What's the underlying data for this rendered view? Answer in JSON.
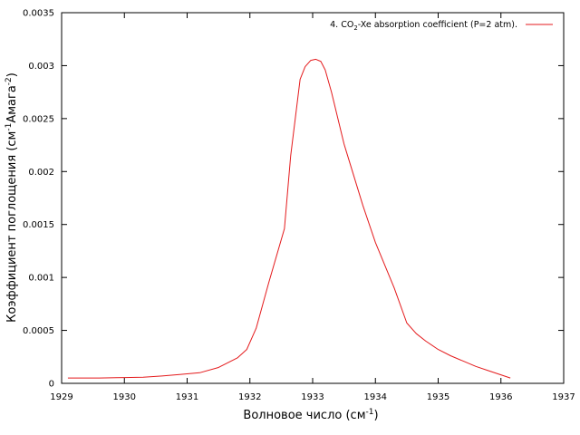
{
  "chart_data": {
    "type": "line",
    "xlabel": "Волновое число (см",
    "xlabel_sup": "-1",
    "xlabel_end": ")",
    "ylabel": "Коэффициент поглощения (см",
    "ylabel_sup1": "-1",
    "ylabel_mid": "Амага",
    "ylabel_sup2": "-2",
    "ylabel_end": ")",
    "xlim": [
      1929,
      1937
    ],
    "ylim": [
      0,
      0.0035
    ],
    "xticks": [
      1929,
      1930,
      1931,
      1932,
      1933,
      1934,
      1935,
      1936,
      1937
    ],
    "yticks": [
      0,
      0.0005,
      0.001,
      0.0015,
      0.002,
      0.0025,
      0.003,
      0.0035
    ],
    "ytick_labels": [
      "0",
      "0.0005",
      "0.001",
      "0.0015",
      "0.002",
      "0.0025",
      "0.003",
      "0.0035"
    ],
    "legend_placement": "top-right",
    "series": [
      {
        "name": "4. CO",
        "name_sub": "2",
        "name_rest": "-Xe absorption coefficient (P=2 atm).",
        "color": "#e41a1c",
        "x": [
          1929.1,
          1929.6,
          1930.0,
          1930.3,
          1930.6,
          1930.9,
          1931.2,
          1931.5,
          1931.8,
          1931.95,
          1932.1,
          1932.3,
          1932.55,
          1932.65,
          1932.8,
          1932.88,
          1932.97,
          1933.05,
          1933.13,
          1933.2,
          1933.3,
          1933.5,
          1933.8,
          1934.0,
          1934.3,
          1934.5,
          1934.65,
          1934.8,
          1935.0,
          1935.2,
          1935.4,
          1935.6,
          1935.8,
          1936.0,
          1936.15
        ],
        "y": [
          5e-05,
          5e-05,
          5.5e-05,
          5.8e-05,
          7e-05,
          8.5e-05,
          0.0001,
          0.00015,
          0.00024,
          0.00032,
          0.00052,
          0.00095,
          0.00146,
          0.00215,
          0.00287,
          0.00299,
          0.00305,
          0.00306,
          0.00304,
          0.00296,
          0.00275,
          0.00226,
          0.00168,
          0.00133,
          0.0009,
          0.00057,
          0.00047,
          0.0004,
          0.00032,
          0.00026,
          0.00021,
          0.00016,
          0.00012,
          8e-05,
          5e-05
        ]
      }
    ]
  }
}
